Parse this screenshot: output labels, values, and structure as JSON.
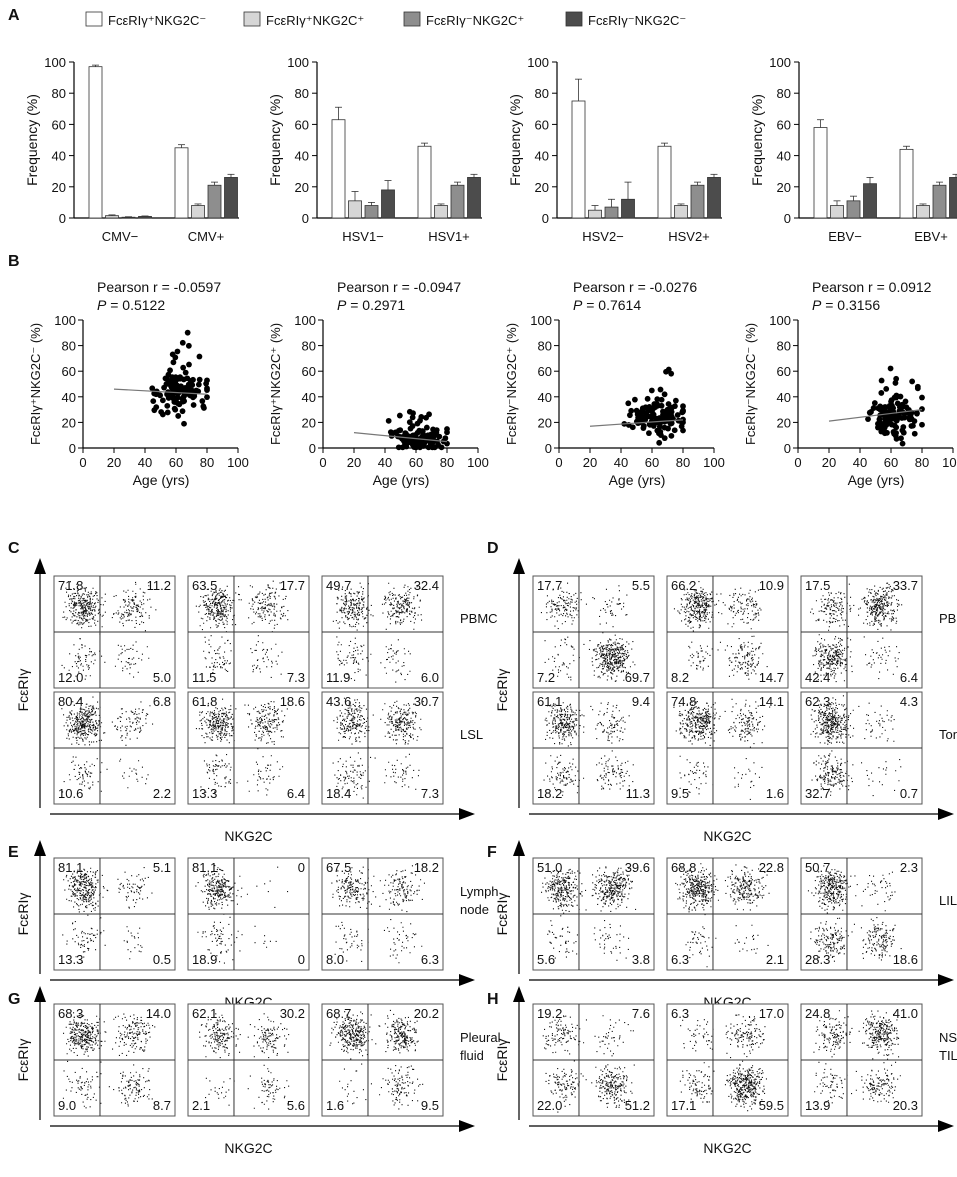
{
  "legend": [
    {
      "label": "FcεRIγ⁺NKG2C⁻",
      "color": "#ffffff"
    },
    {
      "label": "FcεRIγ⁺NKG2C⁺",
      "color": "#d6d6d6"
    },
    {
      "label": "FcεRIγ⁻NKG2C⁺",
      "color": "#8e8e8e"
    },
    {
      "label": "FcεRIγ⁻NKG2C⁻",
      "color": "#4c4c4c"
    }
  ],
  "panel_letters": [
    "A",
    "B",
    "C",
    "D",
    "E",
    "F",
    "G",
    "H"
  ],
  "chart_data": [
    {
      "type": "bar",
      "panel": "A",
      "ylabel": "Frequency (%)",
      "yticks": [
        "0",
        "20",
        "40",
        "60",
        "80",
        "100"
      ],
      "ylim": [
        0,
        100
      ],
      "categories": [
        "CMV−",
        "CMV+"
      ],
      "series": [
        {
          "name": "FcεRIγ⁺NKG2C⁻",
          "values": [
            97,
            45
          ],
          "errors": [
            1,
            2
          ]
        },
        {
          "name": "FcεRIγ⁺NKG2C⁺",
          "values": [
            1.5,
            8
          ],
          "errors": [
            0.5,
            1
          ]
        },
        {
          "name": "FcεRIγ⁻NKG2C⁺",
          "values": [
            0.5,
            21
          ],
          "errors": [
            0.3,
            2
          ]
        },
        {
          "name": "FcεRIγ⁻NKG2C⁻",
          "values": [
            1,
            26
          ],
          "errors": [
            0.3,
            2
          ]
        }
      ]
    },
    {
      "type": "bar",
      "panel": "A",
      "ylabel": "Frequency (%)",
      "yticks": [
        "0",
        "20",
        "40",
        "60",
        "80",
        "100"
      ],
      "ylim": [
        0,
        100
      ],
      "categories": [
        "HSV1−",
        "HSV1+"
      ],
      "series": [
        {
          "name": "FcεRIγ⁺NKG2C⁻",
          "values": [
            63,
            46
          ],
          "errors": [
            8,
            2
          ]
        },
        {
          "name": "FcεRIγ⁺NKG2C⁺",
          "values": [
            11,
            8
          ],
          "errors": [
            6,
            1
          ]
        },
        {
          "name": "FcεRIγ⁻NKG2C⁺",
          "values": [
            8,
            21
          ],
          "errors": [
            2,
            2
          ]
        },
        {
          "name": "FcεRIγ⁻NKG2C⁻",
          "values": [
            18,
            26
          ],
          "errors": [
            6,
            2
          ]
        }
      ]
    },
    {
      "type": "bar",
      "panel": "A",
      "ylabel": "Frequency (%)",
      "yticks": [
        "0",
        "20",
        "40",
        "60",
        "80",
        "100"
      ],
      "ylim": [
        0,
        100
      ],
      "categories": [
        "HSV2−",
        "HSV2+"
      ],
      "series": [
        {
          "name": "FcεRIγ⁺NKG2C⁻",
          "values": [
            75,
            46
          ],
          "errors": [
            14,
            2
          ]
        },
        {
          "name": "FcεRIγ⁺NKG2C⁺",
          "values": [
            5,
            8
          ],
          "errors": [
            3,
            1
          ]
        },
        {
          "name": "FcεRIγ⁻NKG2C⁺",
          "values": [
            7,
            21
          ],
          "errors": [
            5,
            2
          ]
        },
        {
          "name": "FcεRIγ⁻NKG2C⁻",
          "values": [
            12,
            26
          ],
          "errors": [
            11,
            2
          ]
        }
      ]
    },
    {
      "type": "bar",
      "panel": "A",
      "ylabel": "Frequency (%)",
      "yticks": [
        "0",
        "20",
        "40",
        "60",
        "80",
        "100"
      ],
      "ylim": [
        0,
        100
      ],
      "categories": [
        "EBV−",
        "EBV+"
      ],
      "series": [
        {
          "name": "FcεRIγ⁺NKG2C⁻",
          "values": [
            58,
            44
          ],
          "errors": [
            5,
            2
          ]
        },
        {
          "name": "FcεRIγ⁺NKG2C⁺",
          "values": [
            8,
            8
          ],
          "errors": [
            3,
            1
          ]
        },
        {
          "name": "FcεRIγ⁻NKG2C⁺",
          "values": [
            11,
            21
          ],
          "errors": [
            3,
            2
          ]
        },
        {
          "name": "FcεRIγ⁻NKG2C⁻",
          "values": [
            22,
            26
          ],
          "errors": [
            4,
            2
          ]
        }
      ]
    },
    {
      "type": "scatter",
      "panel": "B",
      "ylabel": "FcεRIγ⁺NKG2C⁻ (%)",
      "xlabel": "Age (yrs)",
      "pearson": "Pearson r = -0.0597",
      "p_label": "P",
      "p_value": " = 0.5122",
      "xlim": [
        0,
        100
      ],
      "ylim": [
        0,
        100
      ],
      "xticks": [
        "0",
        "20",
        "40",
        "60",
        "80",
        "100"
      ],
      "yticks": [
        "0",
        "20",
        "40",
        "60",
        "80",
        "100"
      ],
      "fit": [
        [
          20,
          46
        ],
        [
          80,
          42
        ]
      ],
      "center": 45,
      "spread": 19,
      "seed": 11
    },
    {
      "type": "scatter",
      "panel": "B",
      "ylabel": "FcεRIγ⁺NKG2C⁺ (%)",
      "xlabel": "Age (yrs)",
      "pearson": "Pearson r = -0.0947",
      "p_label": "P",
      "p_value": " = 0.2971",
      "xlim": [
        0,
        100
      ],
      "ylim": [
        0,
        100
      ],
      "xticks": [
        "0",
        "20",
        "40",
        "60",
        "80",
        "100"
      ],
      "yticks": [
        "0",
        "20",
        "40",
        "60",
        "80",
        "100"
      ],
      "fit": [
        [
          20,
          12
        ],
        [
          80,
          5
        ]
      ],
      "center": 7,
      "spread": 10,
      "seed": 23
    },
    {
      "type": "scatter",
      "panel": "B",
      "ylabel": "FcεRIγ⁻NKG2C⁺ (%)",
      "xlabel": "Age (yrs)",
      "pearson": "Pearson r = -0.0276",
      "p_label": "P",
      "p_value": " = 0.7614",
      "xlim": [
        0,
        100
      ],
      "ylim": [
        0,
        100
      ],
      "xticks": [
        "0",
        "20",
        "40",
        "60",
        "80",
        "100"
      ],
      "yticks": [
        "0",
        "20",
        "40",
        "60",
        "80",
        "100"
      ],
      "fit": [
        [
          20,
          17
        ],
        [
          80,
          22
        ]
      ],
      "center": 22,
      "spread": 18,
      "seed": 37
    },
    {
      "type": "scatter",
      "panel": "B",
      "ylabel": "FcεRIγ⁻NKG2C⁻ (%)",
      "xlabel": "Age (yrs)",
      "pearson": "Pearson r = 0.0912",
      "p_label": "P",
      "p_value": " = 0.3156",
      "xlim": [
        0,
        100
      ],
      "ylim": [
        0,
        100
      ],
      "xticks": [
        "0",
        "20",
        "40",
        "60",
        "80",
        "100"
      ],
      "yticks": [
        "0",
        "20",
        "40",
        "60",
        "80",
        "100"
      ],
      "fit": [
        [
          20,
          21
        ],
        [
          80,
          30
        ]
      ],
      "center": 25,
      "spread": 17,
      "seed": 53
    }
  ],
  "flow": {
    "x_label": "NKG2C",
    "y_label": "FcεRIγ",
    "panels": [
      {
        "letter": "C",
        "rows": [
          {
            "tissue": [
              "PBMC"
            ],
            "plots": [
              [
                "71.8",
                "11.2",
                "12.0",
                "5.0"
              ],
              [
                "63.5",
                "17.7",
                "11.5",
                "7.3"
              ],
              [
                "49.7",
                "32.4",
                "11.9",
                "6.0"
              ]
            ]
          },
          {
            "tissue": [
              "LSL"
            ],
            "plots": [
              [
                "80.4",
                "6.8",
                "10.6",
                "2.2"
              ],
              [
                "61.8",
                "18.6",
                "13.3",
                "6.4"
              ],
              [
                "43.6",
                "30.7",
                "18.4",
                "7.3"
              ]
            ]
          }
        ]
      },
      {
        "letter": "D",
        "rows": [
          {
            "tissue": [
              "PBMC"
            ],
            "plots": [
              [
                "17.7",
                "5.5",
                "7.2",
                "69.7"
              ],
              [
                "66.2",
                "10.9",
                "8.2",
                "14.7"
              ],
              [
                "17.5",
                "33.7",
                "42.4",
                "6.4"
              ]
            ]
          },
          {
            "tissue": [
              "Tonsil"
            ],
            "plots": [
              [
                "61.1",
                "9.4",
                "18.2",
                "11.3"
              ],
              [
                "74.8",
                "14.1",
                "9.5",
                "1.6"
              ],
              [
                "62.3",
                "4.3",
                "32.7",
                "0.7"
              ]
            ]
          }
        ]
      },
      {
        "letter": "E",
        "rows": [
          {
            "tissue": [
              "Lymph",
              "node"
            ],
            "plots": [
              [
                "81.1",
                "5.1",
                "13.3",
                "0.5"
              ],
              [
                "81.1",
                "0",
                "18.9",
                "0"
              ],
              [
                "67.5",
                "18.2",
                "8.0",
                "6.3"
              ]
            ]
          }
        ]
      },
      {
        "letter": "F",
        "rows": [
          {
            "tissue": [
              "LIL"
            ],
            "plots": [
              [
                "51.0",
                "39.6",
                "5.6",
                "3.8"
              ],
              [
                "68.8",
                "22.8",
                "6.3",
                "2.1"
              ],
              [
                "50.7",
                "2.3",
                "28.3",
                "18.6"
              ]
            ]
          }
        ]
      },
      {
        "letter": "G",
        "rows": [
          {
            "tissue": [
              "Pleural",
              "fluid"
            ],
            "plots": [
              [
                "68.3",
                "14.0",
                "9.0",
                "8.7"
              ],
              [
                "62.1",
                "30.2",
                "2.1",
                "5.6"
              ],
              [
                "68.7",
                "20.2",
                "1.6",
                "9.5"
              ]
            ]
          }
        ]
      },
      {
        "letter": "H",
        "rows": [
          {
            "tissue": [
              "NSCLC",
              "TIL"
            ],
            "plots": [
              [
                "19.2",
                "7.6",
                "22.0",
                "51.2"
              ],
              [
                "6.3",
                "17.0",
                "17.1",
                "59.5"
              ],
              [
                "24.8",
                "41.0",
                "13.9",
                "20.3"
              ]
            ]
          }
        ]
      }
    ]
  }
}
